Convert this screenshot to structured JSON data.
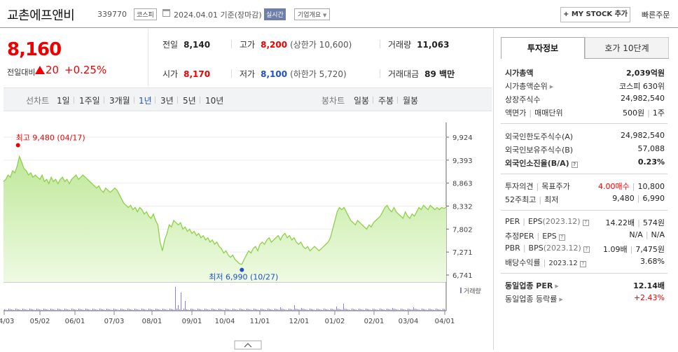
{
  "header": {
    "name": "교촌에프앤비",
    "code": "339770",
    "market": "코스피",
    "date": "2024.04.01 기준(장마감)",
    "live": "실시간",
    "company_btn": "기업개요",
    "mystock_btn": "+ MY STOCK 추가",
    "quick_order": "빠른주문"
  },
  "price": {
    "current": "8,160",
    "compare_label": "전일대비",
    "change": "20",
    "change_pct": "+0.25%"
  },
  "quote": {
    "prev_label": "전일",
    "prev": "8,140",
    "high_label": "고가",
    "high": "8,200",
    "upper_limit": "(상한가 10,600)",
    "volume_label": "거래량",
    "volume": "11,063",
    "open_label": "시가",
    "open": "8,170",
    "low_label": "저가",
    "low": "8,100",
    "lower_limit": "(하한가 5,720)",
    "amount_label": "거래대금",
    "amount": "89 백만"
  },
  "periods": {
    "line_label": "선차트",
    "items": [
      "1일",
      "1주일",
      "3개월",
      "1년",
      "3년",
      "5년",
      "10년"
    ],
    "active": "1년",
    "candle_label": "봉차트",
    "candle_items": [
      "일봉",
      "주봉",
      "월봉"
    ]
  },
  "chart_data": {
    "type": "area",
    "y_ticks": [
      "9,924",
      "9,393",
      "8,863",
      "8,332",
      "7,802",
      "7,271",
      "6,741"
    ],
    "ylim": [
      6741,
      9924
    ],
    "x_ticks": [
      "04/03",
      "05/02",
      "06/01",
      "07/03",
      "08/01",
      "09/01",
      "10/04",
      "11/01",
      "12/01",
      "01/02",
      "02/01",
      "03/04",
      "04/01"
    ],
    "high_label": "최고 9,480 (04/17)",
    "low_label": "최저 6,990 (10/27)",
    "volume_legend": "거래량",
    "values": [
      8900,
      8950,
      9050,
      9000,
      9150,
      9100,
      9250,
      9480,
      9350,
      9200,
      9150,
      9050,
      9100,
      9000,
      9050,
      9000,
      8950,
      9050,
      8900,
      8950,
      8850,
      9000,
      8900,
      8950,
      8850,
      8950,
      9000,
      8900,
      8950,
      8850,
      8950,
      9000,
      9050,
      8950,
      9000,
      9050,
      9000,
      8950,
      8900,
      8850,
      8800,
      8750,
      8800,
      8700,
      8650,
      8750,
      8700,
      8650,
      8700,
      8750,
      8700,
      8600,
      8500,
      8400,
      8350,
      8300,
      8350,
      8250,
      8300,
      8200,
      8300,
      8250,
      8150,
      8200,
      8100,
      8050,
      8150,
      8000,
      7900,
      7500,
      7300,
      7550,
      7700,
      7900,
      7850,
      8000,
      7950,
      7900,
      7950,
      7800,
      7850,
      7750,
      7800,
      7700,
      7750,
      7650,
      7700,
      7600,
      7650,
      7550,
      7600,
      7500,
      7550,
      7450,
      7500,
      7400,
      7350,
      7250,
      7300,
      7200,
      7150,
      7200,
      7100,
      7050,
      7000,
      6990,
      7100,
      7200,
      7300,
      7250,
      7350,
      7400,
      7300,
      7450,
      7500,
      7450,
      7550,
      7600,
      7500,
      7550,
      7600,
      7650,
      7550,
      7650,
      7700,
      7600,
      7650,
      7550,
      7600,
      7500,
      7450,
      7500,
      7400,
      7350,
      7400,
      7300,
      7350,
      7400,
      7350,
      7300,
      7350,
      7400,
      7450,
      7500,
      7600,
      7800,
      8000,
      8200,
      8300,
      8250,
      8300,
      8200,
      8100,
      8000,
      7950,
      7900,
      8000,
      7950,
      7900,
      7850,
      7800,
      7900,
      7850,
      7950,
      8000,
      8050,
      8100,
      8200,
      8300,
      8350,
      8250,
      8200,
      8300,
      8200,
      8150,
      8100,
      8050,
      8200,
      8100,
      8050,
      8150,
      8100,
      8200,
      8300,
      8250,
      8350,
      8300,
      8250,
      8350,
      8300,
      8250,
      8300,
      8250,
      8300,
      8280,
      8300
    ]
  },
  "tabs": {
    "invest": "투자정보",
    "hoga": "호가 10단계"
  },
  "info": {
    "mcap_label": "시가총액",
    "mcap": "2,039억원",
    "mcap_rank_label": "시가총액순위",
    "mcap_rank": "코스피 630위",
    "shares_label": "상장주식수",
    "shares": "24,982,540",
    "face_label": "액면가",
    "unit_label": "매매단위",
    "face": "500원",
    "unit": "1주",
    "foreign_limit_label": "외국인한도주식수(A)",
    "foreign_limit": "24,982,540",
    "foreign_hold_label": "외국인보유주식수(B)",
    "foreign_hold": "57,088",
    "foreign_ratio_label": "외국인소진율(B/A)",
    "foreign_ratio": "0.23%",
    "opinion_label": "투자의견",
    "target_label": "목표주가",
    "opinion": "4.00매수",
    "target": "10,800",
    "w52_label": "52주최고",
    "w52_low_label": "최저",
    "w52_high": "9,480",
    "w52_low": "6,990",
    "per_label": "PER",
    "eps_label": "EPS",
    "per_year": "(2023.12)",
    "per": "14.22배",
    "eps": "574원",
    "est_per_label": "추정PER",
    "est_eps_label": "EPS",
    "est_per": "N/A",
    "est_eps": "N/A",
    "pbr_label": "PBR",
    "bps_label": "BPS",
    "bps_year": "(2023.12)",
    "pbr": "1.09배",
    "bps": "7,475원",
    "div_label": "배당수익률",
    "div_year": "2023.12",
    "div": "3.68%",
    "ind_per_label": "동일업종 PER",
    "ind_per": "12.14배",
    "ind_rate_label": "동일업종 등락률",
    "ind_rate": "+2.43%"
  }
}
